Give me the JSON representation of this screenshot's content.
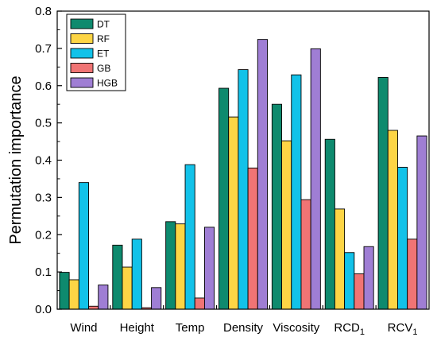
{
  "chart_data": {
    "type": "bar",
    "ylabel": "Permutation importance",
    "xlabel": "",
    "ylim": [
      0,
      0.8
    ],
    "yticks": [
      "0.0",
      "0.1",
      "0.2",
      "0.3",
      "0.4",
      "0.5",
      "0.6",
      "0.7",
      "0.8"
    ],
    "categories": [
      {
        "label": "Wind",
        "sub": ""
      },
      {
        "label": "Height",
        "sub": ""
      },
      {
        "label": "Temp",
        "sub": ""
      },
      {
        "label": "Density",
        "sub": ""
      },
      {
        "label": "Viscosity",
        "sub": ""
      },
      {
        "label": "RCD",
        "sub": "1"
      },
      {
        "label": "RCV",
        "sub": "1"
      }
    ],
    "series": [
      {
        "name": "DT",
        "color": "#0e8a6e",
        "values": [
          0.099,
          0.172,
          0.235,
          0.593,
          0.55,
          0.456,
          0.622
        ]
      },
      {
        "name": "RF",
        "color": "#fdd545",
        "values": [
          0.079,
          0.113,
          0.229,
          0.516,
          0.452,
          0.269,
          0.48
        ]
      },
      {
        "name": "ET",
        "color": "#12c2e9",
        "values": [
          0.34,
          0.188,
          0.388,
          0.643,
          0.629,
          0.152,
          0.381
        ]
      },
      {
        "name": "GB",
        "color": "#f07474",
        "values": [
          0.008,
          0.004,
          0.03,
          0.379,
          0.294,
          0.095,
          0.188
        ]
      },
      {
        "name": "HGB",
        "color": "#9f7ed4",
        "values": [
          0.065,
          0.058,
          0.22,
          0.724,
          0.699,
          0.168,
          0.465
        ]
      }
    ],
    "legend_position": "top-left",
    "grid": false
  }
}
